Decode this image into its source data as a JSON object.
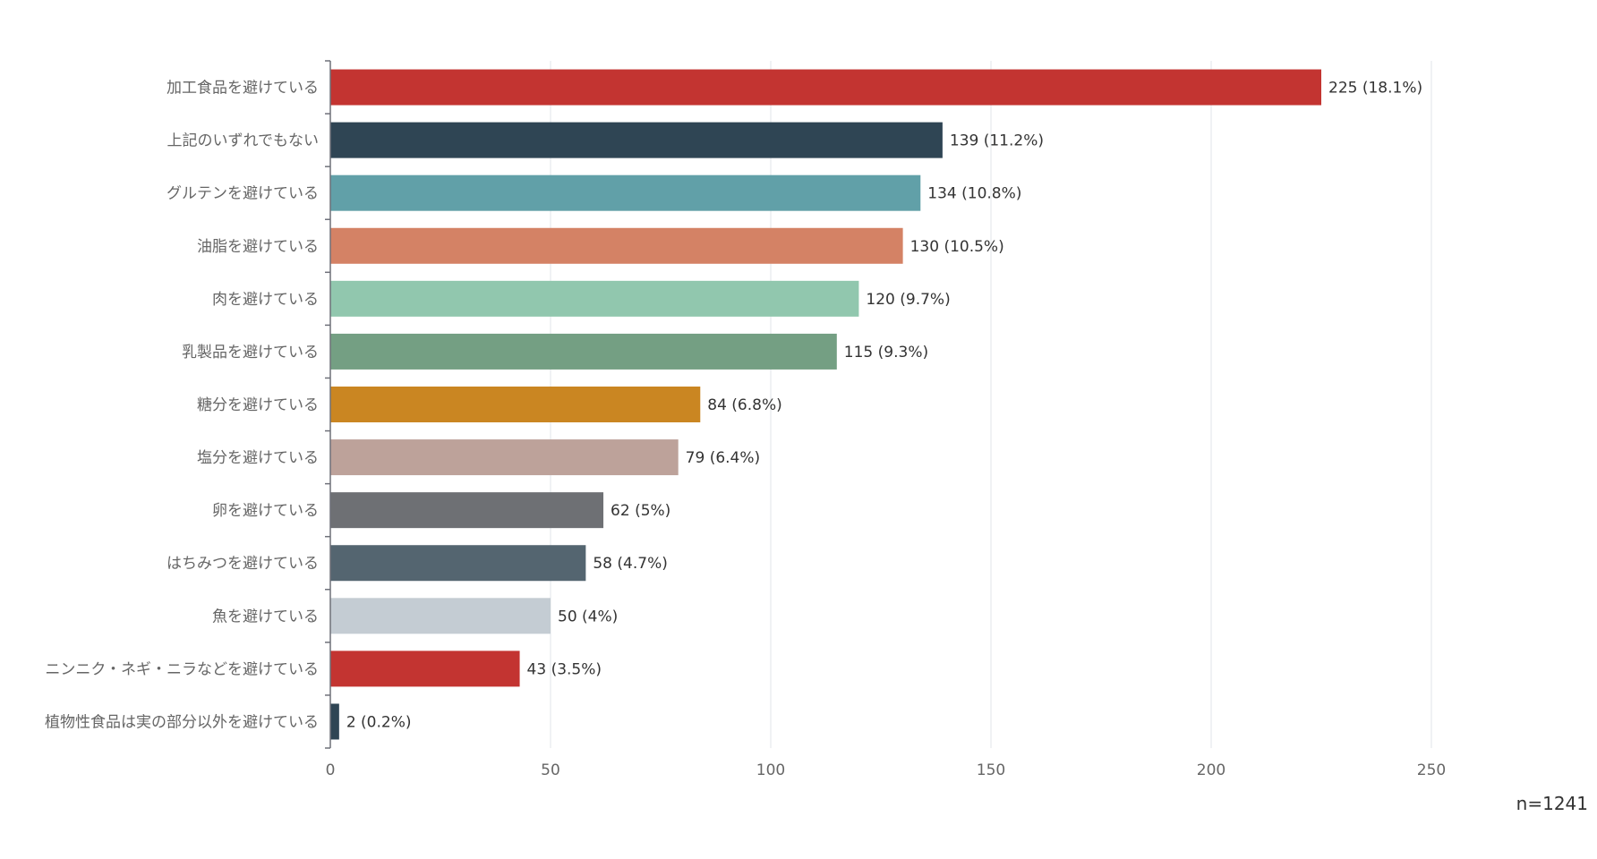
{
  "chart_data": {
    "type": "bar",
    "orientation": "horizontal",
    "title": "",
    "xlabel": "",
    "ylabel": "",
    "xlim": [
      0,
      250
    ],
    "x_ticks": [
      0,
      50,
      100,
      150,
      200,
      250
    ],
    "grid": true,
    "categories": [
      "加工食品を避けている",
      "上記のいずれでもない",
      "グルテンを避けている",
      "油脂を避けている",
      "肉を避けている",
      "乳製品を避けている",
      "糖分を避けている",
      "塩分を避けている",
      "卵を避けている",
      "はちみつを避けている",
      "魚を避けている",
      "ニンニク・ネギ・ニラなどを避けている",
      "植物性食品は実の部分以外を避けている"
    ],
    "values": [
      225,
      139,
      134,
      130,
      120,
      115,
      84,
      79,
      62,
      58,
      50,
      43,
      2
    ],
    "value_labels": [
      "225 (18.1%)",
      "139 (11.2%)",
      "134 (10.8%)",
      "130 (10.5%)",
      "120 (9.7%)",
      "115 (9.3%)",
      "84 (6.8%)",
      "79 (6.4%)",
      "62 (5%)",
      "58 (4.7%)",
      "50 (4%)",
      "43 (3.5%)",
      "2 (0.2%)"
    ],
    "colors": [
      "#c33431",
      "#2f4554",
      "#61a0a8",
      "#d48265",
      "#91c7ae",
      "#749f83",
      "#ca8622",
      "#bda29a",
      "#6e7074",
      "#546570",
      "#c4ccd3",
      "#c33431",
      "#2f4554"
    ],
    "sample_size_label": "n=1241"
  },
  "style": {
    "grid_color": "#e0e6ea",
    "axis_color": "#6e7079"
  }
}
